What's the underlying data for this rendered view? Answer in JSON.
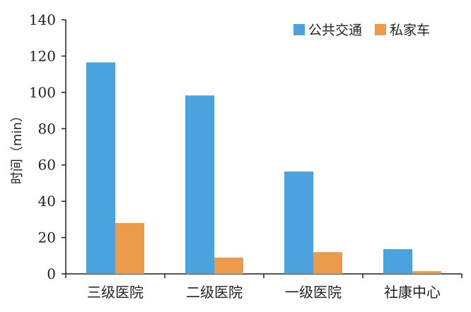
{
  "chart_data": {
    "type": "bar",
    "categories": [
      "三级医院",
      "二级医院",
      "一级医院",
      "社康中心"
    ],
    "series": [
      {
        "name": "公共交通",
        "values": [
          116.5,
          98.3,
          56.4,
          13.6
        ],
        "color": "#4aa3df"
      },
      {
        "name": "私家车",
        "values": [
          28.0,
          9.0,
          12.0,
          1.5
        ],
        "color": "#eb9b4a"
      }
    ],
    "title": "",
    "xlabel": "",
    "ylabel": "时间（min）",
    "ylim": [
      0,
      140
    ],
    "yticks": [
      0,
      20,
      40,
      60,
      80,
      100,
      120,
      140
    ],
    "grid": false,
    "legend_position": "top-right"
  }
}
